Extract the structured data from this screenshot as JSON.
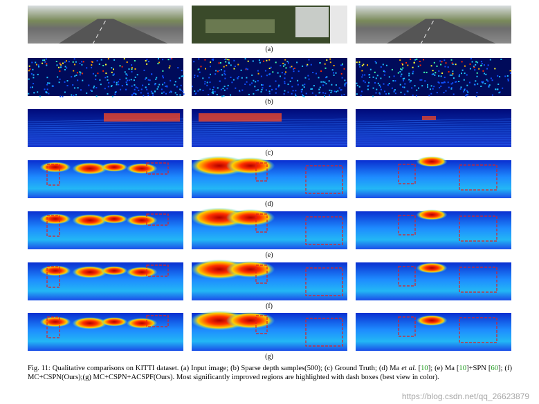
{
  "figure": {
    "row_labels": [
      "(a)",
      "(b)",
      "(c)",
      "(d)",
      "(e)",
      "(f)",
      "(g)"
    ],
    "caption": {
      "parts": [
        "Fig. 11: Qualitative comparisons on KITTI dataset. (a) Input image; (b) Sparse depth samples(500); (c) Ground Truth; (d) Ma ",
        "et al.",
        " [",
        "10",
        "]; (e) Ma [",
        "10",
        "]+SPN [",
        "60",
        "]; (f) MC+CSPN(Ours);(g) MC+CSPN+ACSPF(Ours). Most significantly improved regions are highlighted with dash boxes (best view in color)."
      ]
    }
  },
  "watermark": "https://blog.csdn.net/qq_26623879"
}
